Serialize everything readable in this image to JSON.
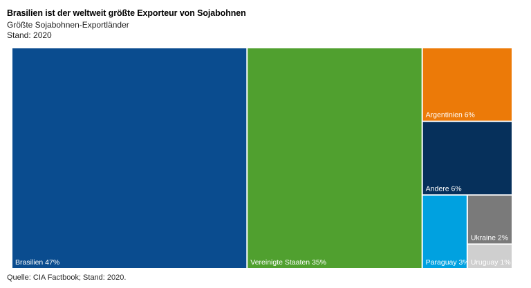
{
  "header": {
    "title": "Brasilien ist der weltweit größte Exporteur von Sojabohnen",
    "subtitle": "Größte Sojabohnen-Exportländer",
    "stand": "Stand: 2020"
  },
  "footer": {
    "source": "Quelle: CIA Factbook; Stand: 2020."
  },
  "chart_data": {
    "type": "treemap",
    "title": "Brasilien ist der weltweit größte Exporteur von Sojabohnen",
    "subtitle": "Größte Sojabohnen-Exportländer",
    "unit": "%",
    "items": [
      {
        "name": "Brasilien",
        "value": 47,
        "color": "#0a4c8f",
        "label_color": "#ffffff"
      },
      {
        "name": "Vereinigte Staaten",
        "value": 35,
        "color": "#50a02f",
        "label_color": "#ffffff"
      },
      {
        "name": "Argentinien",
        "value": 6,
        "color": "#ec7a08",
        "label_color": "#ffffff"
      },
      {
        "name": "Andere",
        "value": 6,
        "color": "#06305b",
        "label_color": "#ffffff"
      },
      {
        "name": "Paraguay",
        "value": 3,
        "color": "#00a1e0",
        "label_color": "#ffffff"
      },
      {
        "name": "Ukraine",
        "value": 2,
        "color": "#7a7a7a",
        "label_color": "#ffffff"
      },
      {
        "name": "Uruguay",
        "value": 1,
        "color": "#cfcfcf",
        "label_color": "#ffffff"
      }
    ]
  }
}
